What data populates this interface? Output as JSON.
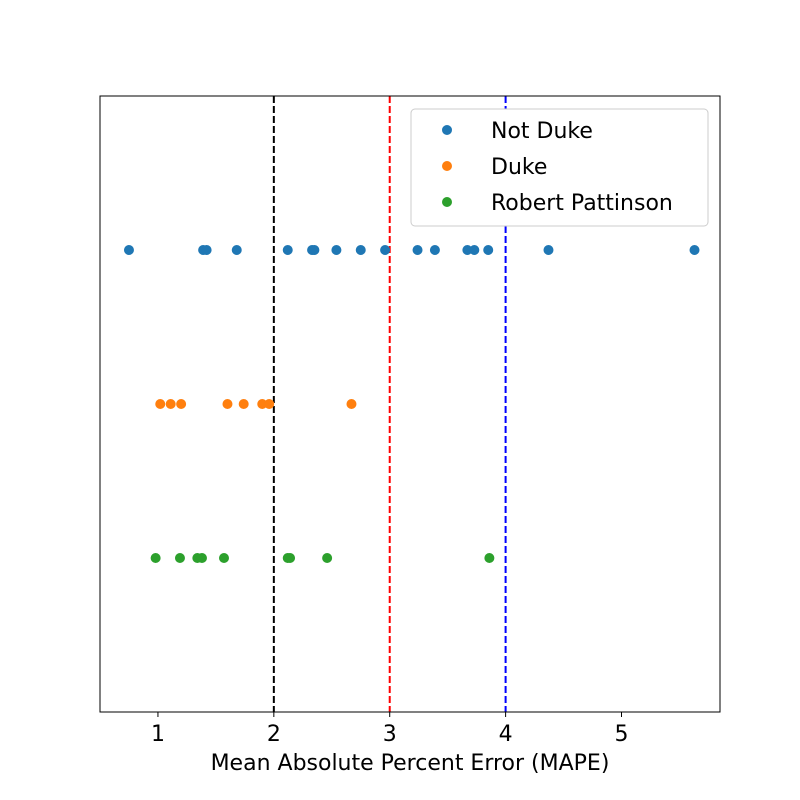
{
  "chart_data": {
    "type": "scatter",
    "title": "",
    "xlabel": "Mean Absolute Percent Error (MAPE)",
    "ylabel": "",
    "xlim": [
      0.5,
      5.85
    ],
    "xticks": [
      1,
      2,
      3,
      4,
      5
    ],
    "xtick_labels": [
      "1",
      "2",
      "3",
      "4",
      "5"
    ],
    "yticks": [],
    "grid": false,
    "legend_position": "top-right",
    "series": [
      {
        "name": "Not Duke",
        "color": "#1f77b4",
        "row": 1,
        "x": [
          0.75,
          1.39,
          1.42,
          1.68,
          2.12,
          2.33,
          2.35,
          2.54,
          2.75,
          2.96,
          3.24,
          3.39,
          3.67,
          3.73,
          3.85,
          4.37,
          5.63
        ]
      },
      {
        "name": "Duke",
        "color": "#ff7f0e",
        "row": 2,
        "x": [
          1.02,
          1.11,
          1.2,
          1.6,
          1.74,
          1.9,
          1.96,
          2.67
        ]
      },
      {
        "name": "Robert Pattinson",
        "color": "#2ca02c",
        "row": 3,
        "x": [
          0.98,
          1.19,
          1.34,
          1.38,
          1.57,
          2.12,
          2.14,
          2.46,
          3.86
        ]
      }
    ],
    "reference_lines": [
      {
        "x": 2,
        "color": "#000000"
      },
      {
        "x": 3,
        "color": "#ff0000"
      },
      {
        "x": 4,
        "color": "#0000ff"
      }
    ]
  }
}
